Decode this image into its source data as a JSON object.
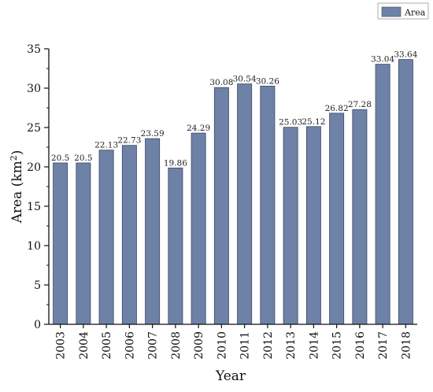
{
  "chart_data": {
    "type": "bar",
    "title": "",
    "xlabel": "Year",
    "ylabel": "Area (km",
    "ylabel_superscript": "2",
    "ylabel_close": ")",
    "ylim": [
      0,
      35
    ],
    "yticks": [
      0,
      5,
      10,
      15,
      20,
      25,
      30,
      35
    ],
    "grid": false,
    "legend_position": "top-right",
    "categories": [
      "2003",
      "2004",
      "2005",
      "2006",
      "2007",
      "2008",
      "2009",
      "2010",
      "2011",
      "2012",
      "2013",
      "2014",
      "2015",
      "2016",
      "2017",
      "2018"
    ],
    "series": [
      {
        "name": "Area",
        "color": "#6e82a8",
        "values": [
          20.5,
          20.5,
          22.13,
          22.73,
          23.59,
          19.86,
          24.29,
          30.08,
          30.54,
          30.26,
          25.03,
          25.12,
          26.82,
          27.28,
          33.04,
          33.64
        ],
        "data_labels": [
          "20.5",
          "20.5",
          "22.13",
          "22.73",
          "23.59",
          "19.86",
          "24.29",
          "30.08",
          "30.54",
          "30.26",
          "25.03",
          "25.12",
          "26.82",
          "27.28",
          "33.04",
          "33.64"
        ]
      }
    ]
  }
}
